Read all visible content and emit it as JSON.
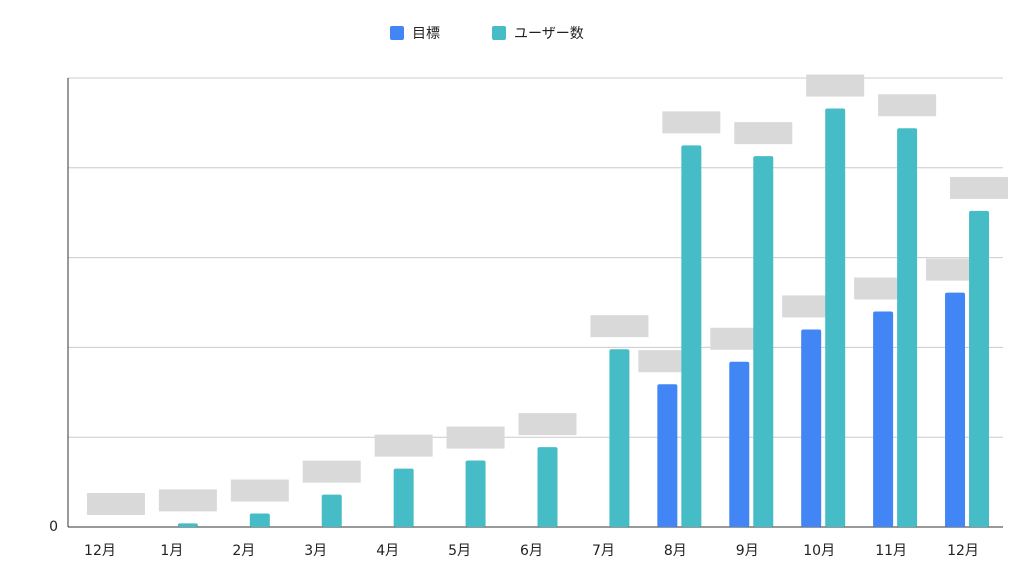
{
  "chart_data": {
    "type": "bar",
    "categories": [
      "12月",
      "1月",
      "2月",
      "3月",
      "4月",
      "5月",
      "6月",
      "7月",
      "8月",
      "9月",
      "10月",
      "11月",
      "12月"
    ],
    "series": [
      {
        "name": "目標",
        "color": "#4285f4",
        "values": [
          null,
          null,
          null,
          null,
          null,
          null,
          null,
          null,
          1.59,
          1.84,
          2.2,
          2.4,
          2.61
        ]
      },
      {
        "name": "ユーザー数",
        "color": "#46bdc6",
        "values": [
          0,
          0.04,
          0.15,
          0.36,
          0.65,
          0.74,
          0.89,
          1.98,
          4.25,
          4.13,
          4.66,
          4.44,
          3.52
        ]
      }
    ],
    "ylim": [
      0,
      5
    ],
    "yticks": [
      0
    ],
    "ygrid": [
      1,
      2,
      3,
      4,
      5
    ],
    "legend": "top"
  }
}
